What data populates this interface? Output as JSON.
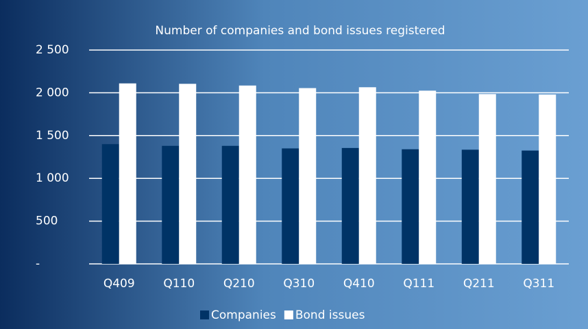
{
  "chart_data": {
    "type": "bar",
    "title": "Number of companies and bond issues registered",
    "categories": [
      "Q409",
      "Q110",
      "Q210",
      "Q310",
      "Q410",
      "Q111",
      "Q211",
      "Q311"
    ],
    "series": [
      {
        "name": "Companies",
        "color": "#003366",
        "values": [
          1400,
          1380,
          1380,
          1350,
          1355,
          1340,
          1335,
          1325
        ]
      },
      {
        "name": "Bond issues",
        "color": "#ffffff",
        "values": [
          2110,
          2105,
          2085,
          2055,
          2065,
          2025,
          1985,
          1980
        ]
      }
    ],
    "ylim": [
      0,
      2500
    ],
    "yticks": [
      {
        "value": 0,
        "label": "-"
      },
      500,
      {
        "value": 1000,
        "label": "1 000"
      },
      {
        "value": 1500,
        "label": "1 500"
      },
      {
        "value": 2000,
        "label": "2 000"
      },
      {
        "value": 2500,
        "label": "2 500"
      }
    ],
    "grid": true,
    "legend": "bottom"
  }
}
